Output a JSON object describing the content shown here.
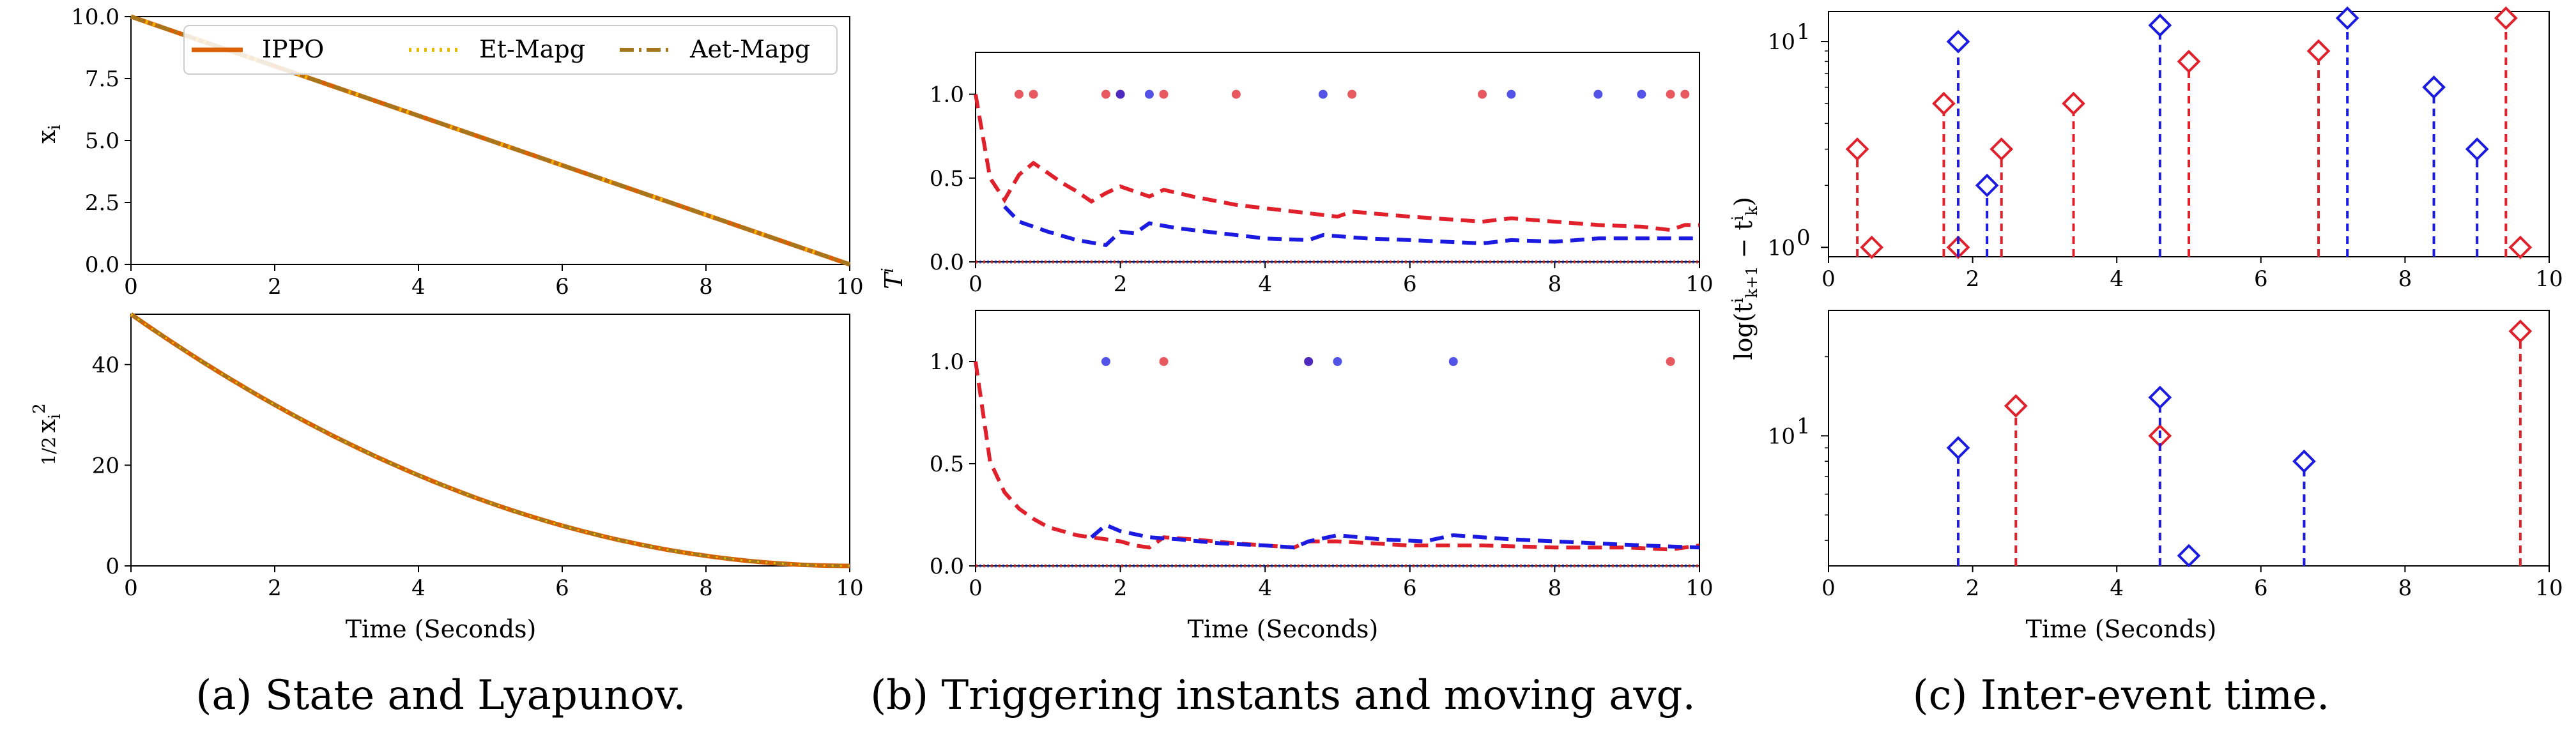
{
  "captions": {
    "a": "(a) State and Lyapunov.",
    "b": "(b) Triggering instants and moving avg.",
    "c": "(c) Inter-event time."
  },
  "labels": {
    "time": "Time (Seconds)",
    "state_y": "x",
    "state_y_sub": "i",
    "lyap_half": "1/2",
    "lyap_x": "x",
    "lyap_sub": "i",
    "lyap_sup": "2",
    "trig_y": "T",
    "trig_sup": "i",
    "inter_y": "log(t",
    "inter_y_mid": " − t",
    "inter_y_end": ")",
    "inter_sub1": "k+1",
    "inter_sup1": "i",
    "inter_sub2": "k",
    "inter_sup2": "i"
  },
  "colors": {
    "ippo": "#d95f02",
    "et_mapg": "#e6b800",
    "aet_mapg": "#a6761d",
    "red": "#e0202a",
    "blue": "#1a1ae0"
  },
  "chart_data": [
    {
      "id": "state",
      "type": "line",
      "xlim": [
        0,
        10
      ],
      "ylim": [
        0,
        10
      ],
      "xticks": [
        "0",
        "2",
        "4",
        "6",
        "8",
        "10"
      ],
      "yticks": [
        "0.0",
        "2.5",
        "5.0",
        "7.5",
        "10.0"
      ],
      "ylabel": "x_i",
      "legend": {
        "placement": "top-right",
        "entries": [
          {
            "label": "IPPO",
            "style": "solid"
          },
          {
            "label": "Et-Mapg",
            "style": "dotted"
          },
          {
            "label": "Aet-Mapg",
            "style": "dashdot"
          }
        ]
      },
      "series": [
        {
          "name": "IPPO",
          "x": [
            0,
            10
          ],
          "y": [
            10,
            0
          ]
        },
        {
          "name": "Et-Mapg",
          "x": [
            0,
            10
          ],
          "y": [
            10,
            0
          ]
        },
        {
          "name": "Aet-Mapg",
          "x": [
            0,
            10
          ],
          "y": [
            10,
            0
          ]
        }
      ]
    },
    {
      "id": "lyapunov",
      "type": "line",
      "xlim": [
        0,
        10
      ],
      "ylim": [
        0,
        50
      ],
      "xticks": [
        "0",
        "2",
        "4",
        "6",
        "8",
        "10"
      ],
      "yticks": [
        "0",
        "20",
        "40"
      ],
      "xlabel": "Time (Seconds)",
      "ylabel": "1/2 x_i^2",
      "series": [
        {
          "name": "IPPO",
          "x": [
            0,
            1,
            2,
            3,
            4,
            5,
            6,
            7,
            8,
            9,
            10
          ],
          "y": [
            50,
            40.5,
            32,
            24.5,
            18,
            12.5,
            8,
            4.5,
            2,
            0.5,
            0
          ]
        }
      ]
    },
    {
      "id": "trigger_top",
      "type": "scatter",
      "xlim": [
        0,
        10
      ],
      "ylim": [
        0,
        1.25
      ],
      "xticks": [
        "0",
        "2",
        "4",
        "6",
        "8",
        "10"
      ],
      "yticks": [
        "0.0",
        "0.5",
        "1.0"
      ],
      "ylabel": "T^i",
      "red_events": [
        0.6,
        0.8,
        1.8,
        2.0,
        2.6,
        3.6,
        5.2,
        7.0,
        9.6,
        9.8
      ],
      "blue_events": [
        2.0,
        2.4,
        4.8,
        7.4,
        8.6,
        9.2
      ],
      "red_avg": {
        "x": [
          0,
          0.2,
          0.4,
          0.6,
          0.8,
          1.0,
          1.2,
          1.4,
          1.6,
          1.8,
          2.0,
          2.2,
          2.4,
          2.6,
          3.0,
          3.6,
          4.0,
          4.6,
          5.0,
          5.2,
          6.0,
          7.0,
          7.4,
          8.0,
          8.6,
          9.2,
          9.6,
          9.8,
          10.0
        ],
        "y": [
          1.0,
          0.5,
          0.37,
          0.52,
          0.59,
          0.53,
          0.47,
          0.42,
          0.36,
          0.41,
          0.45,
          0.42,
          0.39,
          0.43,
          0.39,
          0.34,
          0.32,
          0.29,
          0.27,
          0.3,
          0.27,
          0.24,
          0.26,
          0.24,
          0.22,
          0.21,
          0.19,
          0.22,
          0.22
        ]
      },
      "blue_avg": {
        "x": [
          0.4,
          0.6,
          1.0,
          1.4,
          1.8,
          2.0,
          2.2,
          2.4,
          2.8,
          3.4,
          4.0,
          4.6,
          4.8,
          5.4,
          6.0,
          7.0,
          7.4,
          8.0,
          8.6,
          9.0,
          9.6,
          10.0
        ],
        "y": [
          0.33,
          0.24,
          0.18,
          0.13,
          0.1,
          0.18,
          0.17,
          0.23,
          0.2,
          0.17,
          0.14,
          0.13,
          0.16,
          0.14,
          0.13,
          0.11,
          0.13,
          0.12,
          0.14,
          0.14,
          0.14,
          0.14
        ]
      }
    },
    {
      "id": "trigger_bottom",
      "type": "scatter",
      "xlim": [
        0,
        10
      ],
      "ylim": [
        0,
        1.25
      ],
      "xticks": [
        "0",
        "2",
        "4",
        "6",
        "8",
        "10"
      ],
      "yticks": [
        "0.0",
        "0.5",
        "1.0"
      ],
      "xlabel": "Time (Seconds)",
      "red_events": [
        2.6,
        4.6,
        9.6
      ],
      "blue_events": [
        1.8,
        4.6,
        5.0,
        6.6
      ],
      "red_avg": {
        "x": [
          0,
          0.2,
          0.4,
          0.6,
          0.8,
          1.0,
          1.2,
          1.4,
          1.6,
          1.8,
          2.0,
          2.2,
          2.4,
          2.6,
          3.0,
          3.6,
          4.0,
          4.4,
          4.6,
          5.0,
          6.0,
          7.0,
          8.0,
          9.0,
          9.6,
          10.0
        ],
        "y": [
          1.0,
          0.51,
          0.36,
          0.28,
          0.23,
          0.19,
          0.17,
          0.15,
          0.14,
          0.13,
          0.12,
          0.1,
          0.09,
          0.14,
          0.13,
          0.11,
          0.1,
          0.09,
          0.12,
          0.12,
          0.1,
          0.1,
          0.09,
          0.09,
          0.08,
          0.1
        ]
      },
      "blue_avg": {
        "x": [
          1.6,
          1.8,
          2.0,
          2.4,
          2.8,
          3.4,
          4.0,
          4.4,
          4.6,
          5.0,
          5.6,
          6.2,
          6.6,
          7.4,
          8.0,
          8.6,
          9.2,
          10.0
        ],
        "y": [
          0.14,
          0.2,
          0.17,
          0.14,
          0.13,
          0.11,
          0.1,
          0.09,
          0.12,
          0.15,
          0.13,
          0.12,
          0.15,
          0.13,
          0.12,
          0.11,
          0.1,
          0.09
        ]
      }
    },
    {
      "id": "inter_top",
      "type": "stem",
      "xlim": [
        0,
        10
      ],
      "ylim": [
        0.9,
        14
      ],
      "log_y": true,
      "xticks": [
        "0",
        "2",
        "4",
        "6",
        "8",
        "10"
      ],
      "yticks": [
        "10^0",
        "10^1"
      ],
      "ylabel": "log(t^i_{k+1} - t^i_k)",
      "red_stems": {
        "x": [
          0.4,
          0.6,
          1.6,
          1.8,
          2.4,
          3.4,
          5.0,
          6.8,
          9.4,
          9.6
        ],
        "y": [
          3,
          1,
          5,
          1,
          3,
          5,
          8,
          9,
          13,
          1
        ]
      },
      "blue_stems": {
        "x": [
          1.8,
          2.2,
          4.6,
          7.2,
          8.4,
          9.0
        ],
        "y": [
          10,
          2,
          12,
          13,
          6,
          3
        ]
      }
    },
    {
      "id": "inter_bottom",
      "type": "stem",
      "xlim": [
        0,
        10
      ],
      "ylim": [
        3.2,
        30
      ],
      "log_y": true,
      "xticks": [
        "0",
        "2",
        "4",
        "6",
        "8",
        "10"
      ],
      "yticks": [
        "10^1"
      ],
      "xlabel": "Time (Seconds)",
      "red_stems": {
        "x": [
          2.6,
          4.6,
          9.6
        ],
        "y": [
          13,
          10,
          25
        ]
      },
      "blue_stems": {
        "x": [
          1.8,
          4.6,
          5.0,
          6.6
        ],
        "y": [
          9,
          14,
          3.5,
          8
        ]
      }
    }
  ]
}
